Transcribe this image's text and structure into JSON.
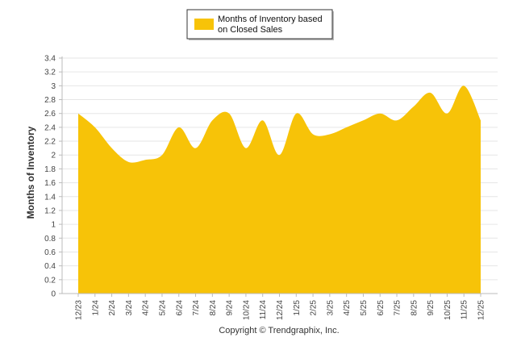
{
  "chart_data": {
    "type": "area",
    "title": "",
    "ylabel": "Months of Inventory",
    "xlabel": "",
    "ylim": [
      0,
      3.4
    ],
    "ytick_step": 0.2,
    "yticks": [
      "0",
      "0.2",
      "0.4",
      "0.6",
      "0.8",
      "1",
      "1.2",
      "1.4",
      "1.6",
      "1.8",
      "2",
      "2.2",
      "2.4",
      "2.6",
      "2.8",
      "3",
      "3.2",
      "3.4"
    ],
    "categories": [
      "12/23",
      "1/24",
      "2/24",
      "3/24",
      "4/24",
      "5/24",
      "6/24",
      "7/24",
      "8/24",
      "9/24",
      "10/24",
      "11/24",
      "12/24",
      "1/25",
      "2/25",
      "3/25",
      "4/25",
      "5/25",
      "6/25",
      "7/25",
      "8/25",
      "9/25",
      "10/25",
      "11/25",
      "12/25"
    ],
    "series": [
      {
        "name": "Months of Inventory based on Closed Sales",
        "color": "#F7C308",
        "values": [
          2.6,
          2.4,
          2.1,
          1.9,
          1.93,
          2.0,
          2.4,
          2.1,
          2.5,
          2.6,
          2.1,
          2.5,
          2.0,
          2.6,
          2.3,
          2.3,
          2.4,
          2.5,
          2.6,
          2.5,
          2.7,
          2.9,
          2.6,
          3.0,
          2.5
        ]
      }
    ],
    "legend": {
      "line1": "Months of Inventory based",
      "line2": "on Closed Sales",
      "position": "top-center"
    },
    "grid": true
  },
  "footer": {
    "copyright": "Copyright © Trendgraphix, Inc."
  }
}
